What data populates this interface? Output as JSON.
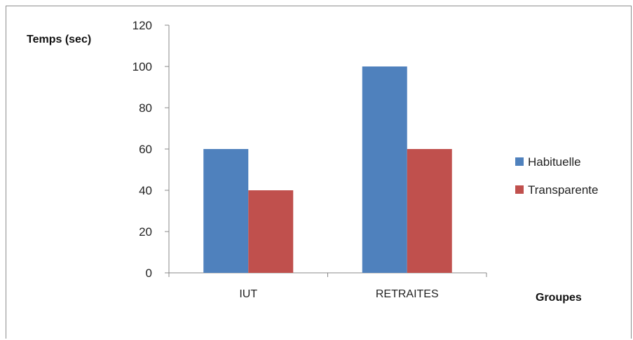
{
  "chart_data": {
    "type": "bar",
    "ylabel": "Temps (sec)",
    "xlabel": "Groupes",
    "categories": [
      "IUT",
      "RETRAITES"
    ],
    "series": [
      {
        "name": "Habituelle",
        "values": [
          60,
          100
        ],
        "color": "#4F81BD"
      },
      {
        "name": "Transparente",
        "values": [
          40,
          60
        ],
        "color": "#C0504D"
      }
    ],
    "ylim": [
      0,
      120
    ],
    "yticks": [
      0,
      20,
      40,
      60,
      80,
      100,
      120
    ],
    "grid": false,
    "legend_position": "right"
  }
}
